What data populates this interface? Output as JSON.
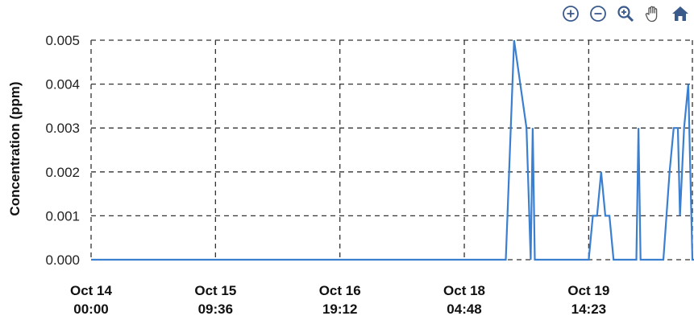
{
  "toolbar": {
    "items": [
      {
        "name": "zoom-in-icon",
        "label": "Zoom in"
      },
      {
        "name": "zoom-out-icon",
        "label": "Zoom out"
      },
      {
        "name": "zoom-selection-icon",
        "label": "Selection zoom"
      },
      {
        "name": "pan-icon",
        "label": "Panning"
      },
      {
        "name": "home-icon",
        "label": "Reset zoom"
      }
    ],
    "icon_color": "#3b5a8c"
  },
  "chart_data": {
    "type": "line",
    "ylabel": "Concentration (ppm)",
    "xlabel": "",
    "ylim": [
      0,
      0.005
    ],
    "yticks": [
      "0.000",
      "0.001",
      "0.002",
      "0.003",
      "0.004",
      "0.005"
    ],
    "x_range": [
      0,
      29
    ],
    "xticks": [
      {
        "x": 0,
        "line1": "Oct 14",
        "line2": "00:00"
      },
      {
        "x": 6,
        "line1": "Oct 15",
        "line2": "09:36"
      },
      {
        "x": 12,
        "line1": "Oct 16",
        "line2": "19:12"
      },
      {
        "x": 18,
        "line1": "Oct 18",
        "line2": "04:48"
      },
      {
        "x": 24,
        "line1": "Oct 19",
        "line2": "14:23"
      }
    ],
    "grid": true,
    "line_color": "#3a7fd0",
    "series": [
      {
        "values": [
          [
            0,
            0
          ],
          [
            20.0,
            0
          ],
          [
            20.4,
            0.005
          ],
          [
            21.0,
            0.003
          ],
          [
            21.2,
            0
          ],
          [
            21.3,
            0.003
          ],
          [
            21.4,
            0
          ],
          [
            24.0,
            0
          ],
          [
            24.2,
            0.001
          ],
          [
            24.4,
            0.001
          ],
          [
            24.6,
            0.002
          ],
          [
            24.8,
            0.001
          ],
          [
            25.0,
            0.001
          ],
          [
            25.2,
            0
          ],
          [
            26.3,
            0
          ],
          [
            26.4,
            0.003
          ],
          [
            26.5,
            0
          ],
          [
            27.6,
            0
          ],
          [
            27.9,
            0.002
          ],
          [
            28.1,
            0.003
          ],
          [
            28.3,
            0.003
          ],
          [
            28.4,
            0.001
          ],
          [
            28.6,
            0.003
          ],
          [
            28.8,
            0.004
          ],
          [
            29.0,
            0
          ],
          [
            29.4,
            0
          ]
        ]
      }
    ]
  }
}
